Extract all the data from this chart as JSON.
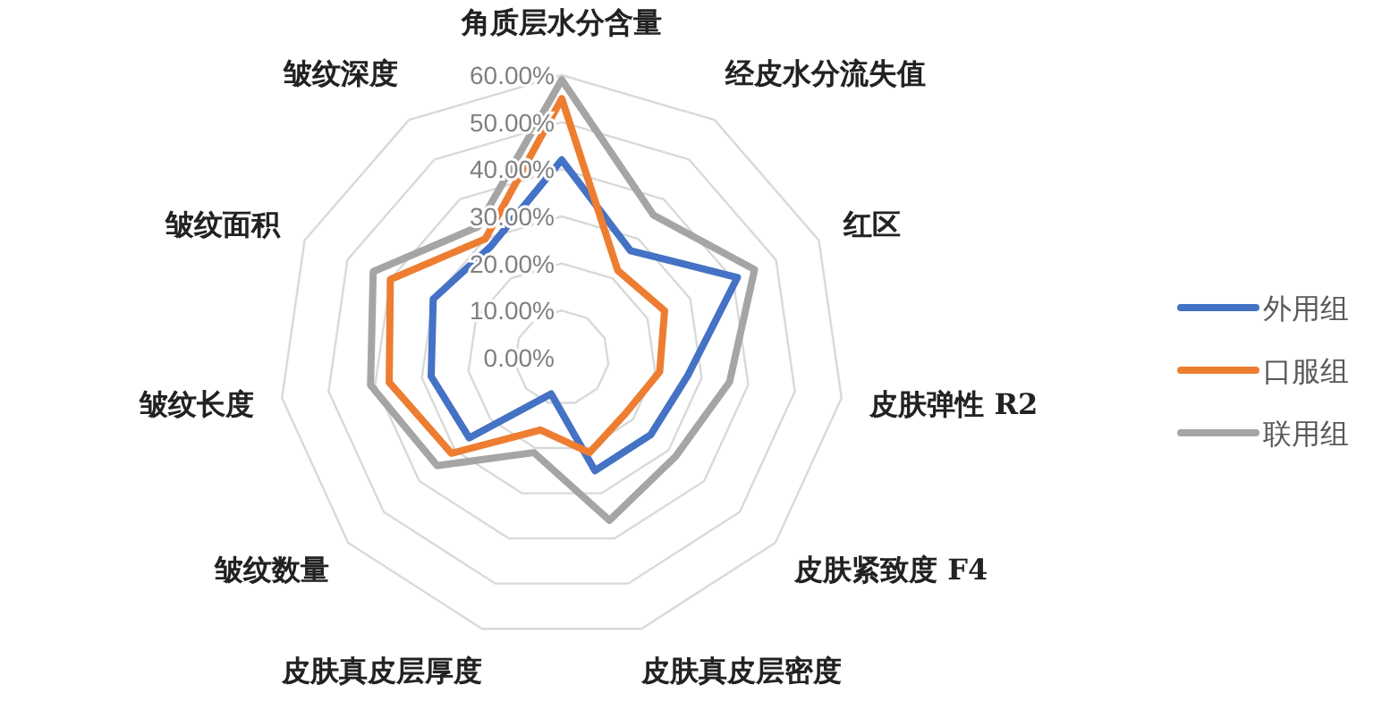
{
  "chart_data": {
    "type": "radar",
    "categories": [
      "角质层水分含量",
      "经皮水分流失值",
      "红区",
      "皮肤弹性 R2",
      "皮肤紧致度 F4",
      "皮肤真皮层密度",
      "皮肤真皮层厚度",
      "皱纹数量",
      "皱纹长度",
      "皱纹面积",
      "皱纹深度"
    ],
    "series": [
      {
        "name": "外用组",
        "color": "#4472c4",
        "values": [
          42,
          27,
          41,
          27,
          25,
          25,
          8,
          26,
          28,
          30,
          28
        ]
      },
      {
        "name": "口服组",
        "color": "#ed7d31",
        "values": [
          55,
          22,
          24,
          21,
          18,
          21,
          16,
          31,
          37,
          40,
          30
        ]
      },
      {
        "name": "联用组",
        "color": "#a5a5a5",
        "values": [
          59,
          36,
          45,
          36,
          32,
          36,
          21,
          35,
          41,
          44,
          33
        ]
      }
    ],
    "ylim": [
      0,
      60
    ],
    "yticks": [
      {
        "value": 0,
        "label": "0.00%"
      },
      {
        "value": 10,
        "label": "10.00%"
      },
      {
        "value": 20,
        "label": "20.00%"
      },
      {
        "value": 30,
        "label": "30.00%"
      },
      {
        "value": 40,
        "label": "40.00%"
      },
      {
        "value": 50,
        "label": "50.00%"
      },
      {
        "value": 60,
        "label": "60.00%"
      }
    ],
    "grid": true,
    "legend": "right",
    "marker": "none"
  }
}
